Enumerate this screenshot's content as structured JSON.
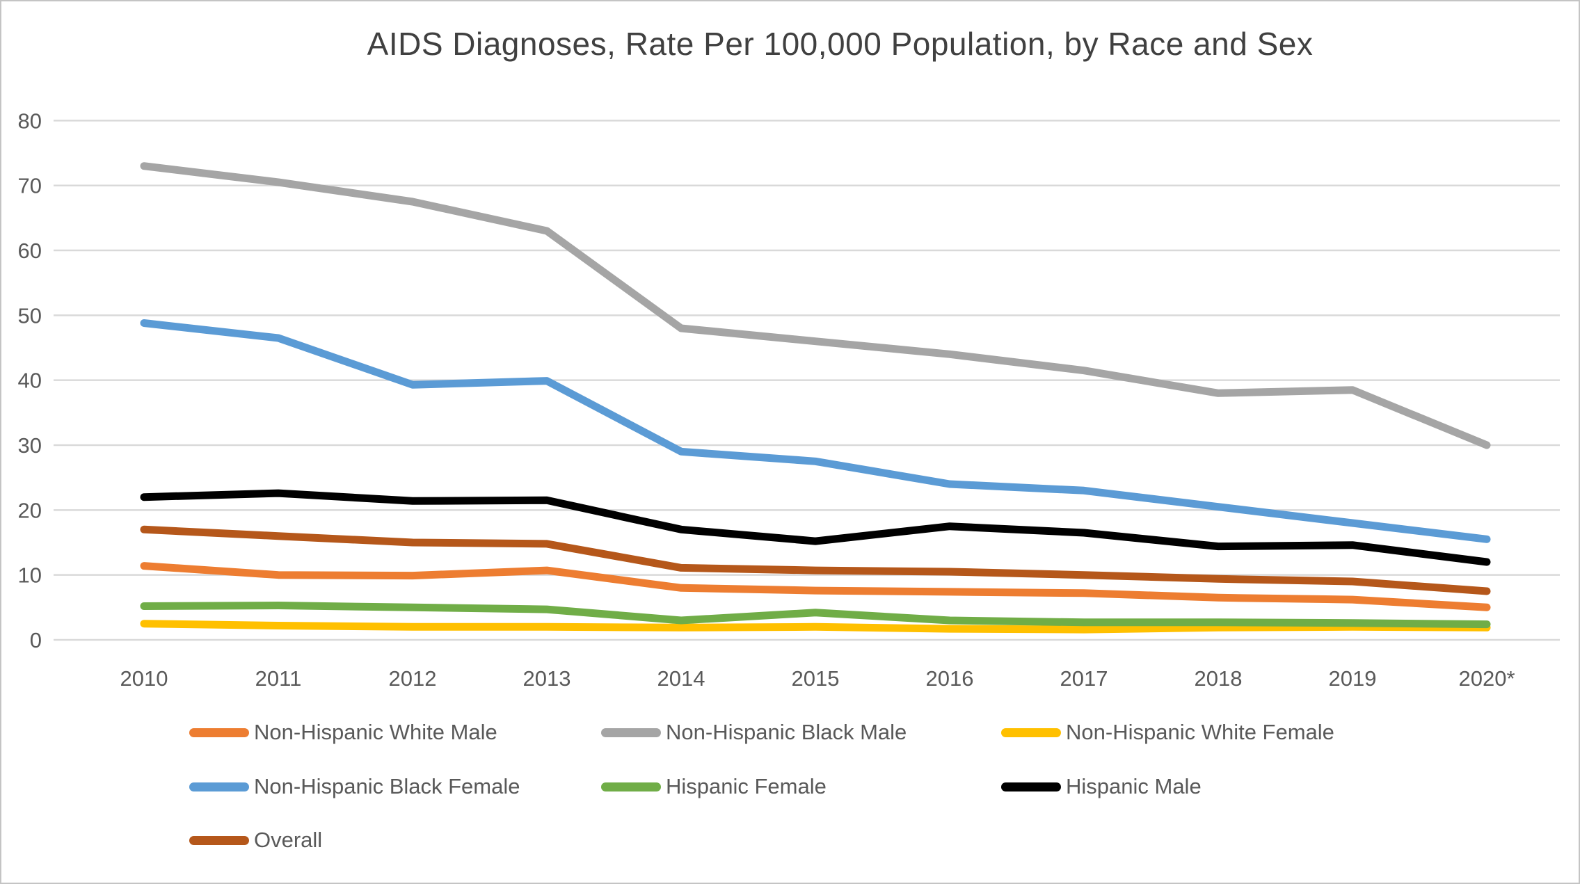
{
  "chart_data": {
    "type": "line",
    "title": "AIDS Diagnoses, Rate Per 100,000 Population, by Race and Sex",
    "xlabel": "",
    "ylabel": "",
    "categories": [
      "2010",
      "2011",
      "2012",
      "2013",
      "2014",
      "2015",
      "2016",
      "2017",
      "2018",
      "2019",
      "2020*"
    ],
    "series": [
      {
        "name": "Non-Hispanic White Male",
        "color": "#ED7D31",
        "values": [
          11.4,
          10.0,
          9.9,
          10.7,
          8.0,
          7.6,
          7.4,
          7.2,
          6.5,
          6.2,
          5.0
        ]
      },
      {
        "name": "Non-Hispanic Black Male",
        "color": "#A5A5A5",
        "values": [
          73.0,
          70.5,
          67.5,
          63.0,
          48.0,
          46.0,
          44.0,
          41.5,
          38.0,
          38.5,
          30.0
        ]
      },
      {
        "name": "Non-Hispanic White Female",
        "color": "#FFC000",
        "values": [
          2.5,
          2.2,
          2.0,
          2.0,
          1.9,
          2.0,
          1.7,
          1.6,
          1.9,
          2.0,
          1.9
        ]
      },
      {
        "name": "Non-Hispanic Black Female",
        "color": "#5B9BD5",
        "values": [
          48.8,
          46.5,
          39.3,
          39.9,
          29.0,
          27.5,
          24.0,
          23.0,
          20.5,
          18.0,
          15.5
        ]
      },
      {
        "name": "Hispanic Female",
        "color": "#70AD47",
        "values": [
          5.2,
          5.3,
          5.0,
          4.7,
          3.0,
          4.2,
          3.0,
          2.7,
          2.7,
          2.6,
          2.4
        ]
      },
      {
        "name": "Hispanic Male",
        "color": "#000000",
        "values": [
          22.0,
          22.6,
          21.4,
          21.5,
          17.0,
          15.2,
          17.5,
          16.5,
          14.4,
          14.6,
          12.0
        ]
      },
      {
        "name": "Overall",
        "color": "#B5571A",
        "values": [
          17.0,
          16.0,
          15.0,
          14.8,
          11.1,
          10.7,
          10.5,
          10.0,
          9.4,
          9.0,
          7.5
        ]
      }
    ],
    "yticks": [
      0,
      10,
      20,
      30,
      40,
      50,
      60,
      70,
      80
    ],
    "ylim": [
      0,
      80
    ],
    "grid": "horizontal-only",
    "legend_position": "bottom",
    "legend_layout_columns": 3
  },
  "style_colors": {
    "axis_text": "#595959",
    "title_text": "#404040",
    "gridline": "#D9D9D9",
    "background": "#FFFFFF",
    "border": "#C4C4C4"
  }
}
